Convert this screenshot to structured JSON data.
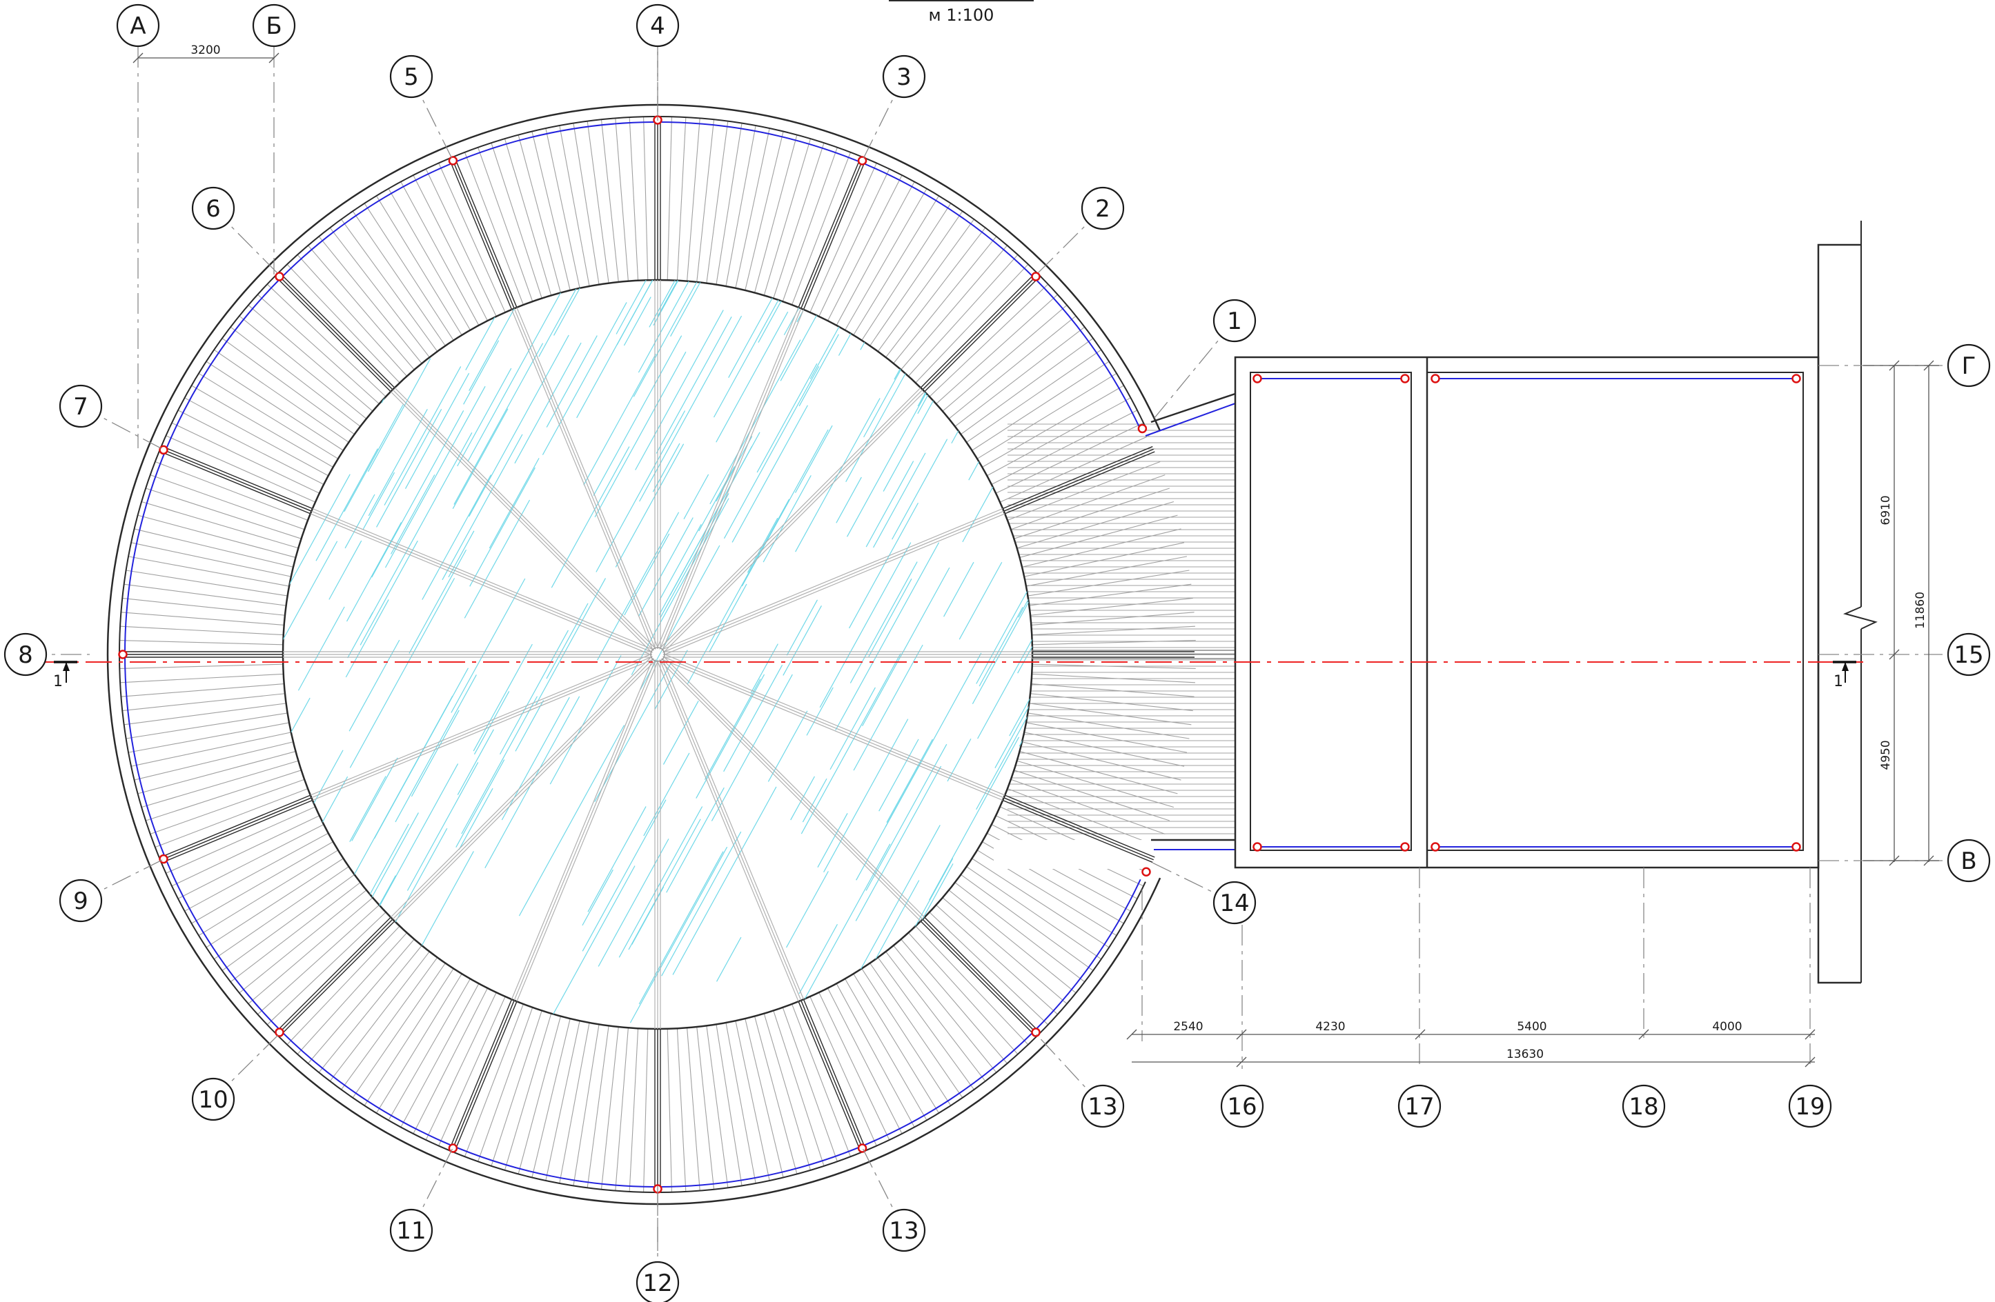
{
  "scale_note": "м 1:100",
  "section_mark": "1",
  "grid_axes": [
    {
      "id": "axis-a",
      "label": "А"
    },
    {
      "id": "axis-b",
      "label": "Б"
    },
    {
      "id": "axis-1",
      "label": "1"
    },
    {
      "id": "axis-2",
      "label": "2"
    },
    {
      "id": "axis-3",
      "label": "3"
    },
    {
      "id": "axis-4",
      "label": "4"
    },
    {
      "id": "axis-5",
      "label": "5"
    },
    {
      "id": "axis-6",
      "label": "6"
    },
    {
      "id": "axis-7",
      "label": "7"
    },
    {
      "id": "axis-8",
      "label": "8"
    },
    {
      "id": "axis-9",
      "label": "9"
    },
    {
      "id": "axis-10",
      "label": "10"
    },
    {
      "id": "axis-11",
      "label": "11"
    },
    {
      "id": "axis-12",
      "label": "12"
    },
    {
      "id": "axis-13a",
      "label": "13"
    },
    {
      "id": "axis-13b",
      "label": "13"
    },
    {
      "id": "axis-14",
      "label": "14"
    },
    {
      "id": "axis-15",
      "label": "15"
    },
    {
      "id": "axis-16",
      "label": "16"
    },
    {
      "id": "axis-17",
      "label": "17"
    },
    {
      "id": "axis-18",
      "label": "18"
    },
    {
      "id": "axis-19",
      "label": "19"
    },
    {
      "id": "axis-g",
      "label": "Г"
    },
    {
      "id": "axis-v",
      "label": "В"
    }
  ],
  "dimensions": {
    "a_b": "3200",
    "d_2540": "2540",
    "d_4230": "4230",
    "d_5400": "5400",
    "d_4000": "4000",
    "d_total_h": "13630",
    "d_6910": "6910",
    "d_4950": "4950",
    "d_total_v": "11860"
  },
  "colors": {
    "line": "#2a2a2a",
    "hatch": "#9a9a9a",
    "beam": "#888888",
    "blue": "#2222dd",
    "red": "#dd1111",
    "cyan": "#6fd8e8",
    "section_line": "#ee2222"
  }
}
